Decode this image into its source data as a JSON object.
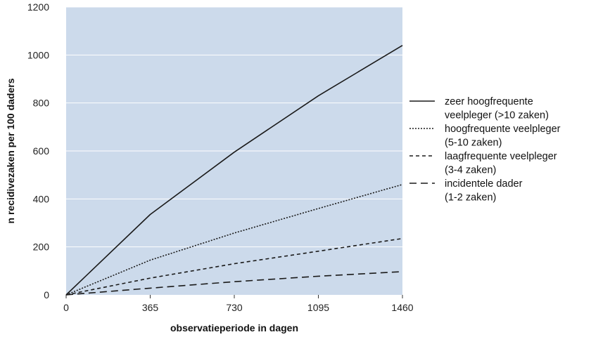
{
  "colors": {
    "plot_background": "#ccdaeb",
    "gridline": "#ffffff",
    "series_line": "#1a1a1a"
  },
  "chart_data": {
    "type": "line",
    "xlabel": "observatieperiode in dagen",
    "ylabel": "n recidivezaken per 100 daders",
    "xlim": [
      0,
      1460
    ],
    "ylim": [
      0,
      1200
    ],
    "x_ticks": [
      0,
      365,
      730,
      1095,
      1460
    ],
    "y_ticks": [
      0,
      200,
      400,
      600,
      800,
      1000,
      1200
    ],
    "x_tick_labels": [
      "0",
      "365",
      "730",
      "1095",
      "1460"
    ],
    "y_tick_labels": [
      "0",
      "200",
      "400",
      "600",
      "800",
      "1000",
      "1200"
    ],
    "grid": "horizontal",
    "legend_position": "right",
    "x": [
      0,
      365,
      730,
      1095,
      1460
    ],
    "series": [
      {
        "name": "zeer hoogfrequente veelpleger (>10 zaken)",
        "legend_lines": [
          "zeer hoogfrequente",
          "veelpleger (>10 zaken)"
        ],
        "dash": "solid",
        "values": [
          0,
          335,
          595,
          830,
          1040
        ]
      },
      {
        "name": "hoogfrequente veelpleger (5-10 zaken)",
        "legend_lines": [
          "hoogfrequente veelpleger",
          "(5-10 zaken)"
        ],
        "dash": "dotted",
        "values": [
          0,
          145,
          258,
          360,
          460
        ]
      },
      {
        "name": "laagfrequente veelpleger (3-4 zaken)",
        "legend_lines": [
          "laagfrequente veelpleger",
          "(3-4 zaken)"
        ],
        "dash": "dashed",
        "values": [
          0,
          70,
          130,
          182,
          235
        ]
      },
      {
        "name": "incidentele dader (1-2 zaken)",
        "legend_lines": [
          "incidentele dader",
          "(1-2 zaken)"
        ],
        "dash": "long-dashed",
        "values": [
          0,
          28,
          55,
          78,
          97
        ]
      }
    ]
  }
}
